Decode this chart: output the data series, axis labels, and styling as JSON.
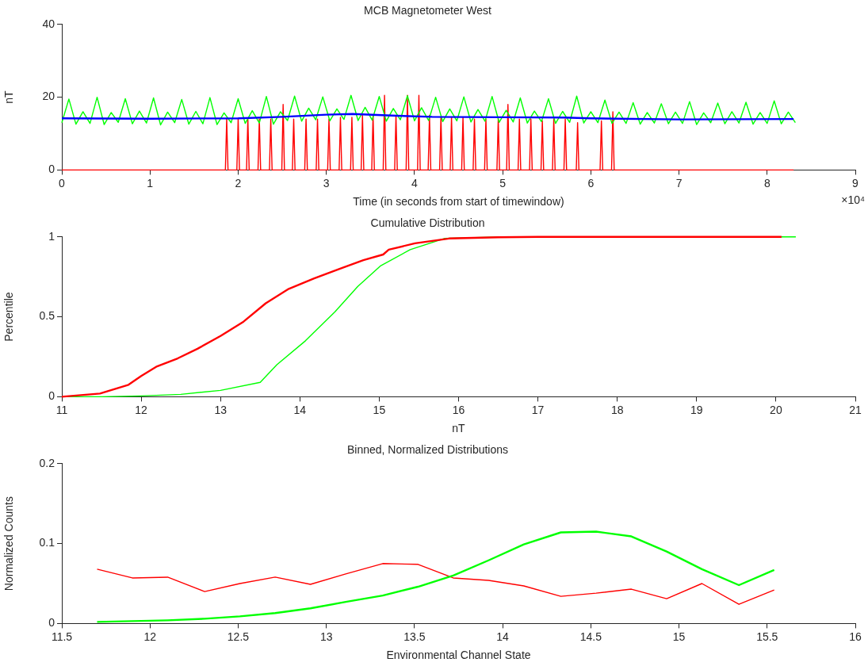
{
  "chart_data": [
    {
      "type": "line",
      "title": "MCB Magnetometer West",
      "xlabel": "Time (in seconds from start of timewindow)",
      "ylabel": "nT",
      "xlim": [
        0,
        9
      ],
      "xticks": [
        0,
        1,
        2,
        3,
        4,
        5,
        6,
        7,
        8,
        9
      ],
      "ylim": [
        0,
        40
      ],
      "yticks": [
        0,
        20,
        40
      ],
      "annotations": [
        "×10⁴"
      ],
      "series": [
        {
          "color": "#ff0000",
          "x": [
            0,
            1.855,
            1.87,
            1.885,
            1.985,
            2.0,
            2.015,
            2.095,
            2.11,
            2.125,
            2.225,
            2.24,
            2.255,
            2.355,
            2.37,
            2.385,
            2.495,
            2.51,
            2.525,
            2.615,
            2.63,
            2.645,
            2.755,
            2.77,
            2.785,
            2.885,
            2.9,
            2.915,
            3.015,
            3.03,
            3.045,
            3.145,
            3.16,
            3.175,
            3.275,
            3.29,
            3.305,
            3.395,
            3.41,
            3.425,
            3.515,
            3.53,
            3.545,
            3.645,
            3.66,
            3.675,
            3.775,
            3.79,
            3.805,
            3.905,
            3.92,
            3.935,
            4.035,
            4.05,
            4.065,
            4.155,
            4.17,
            4.185,
            4.285,
            4.3,
            4.315,
            4.405,
            4.42,
            4.435,
            4.535,
            4.55,
            4.565,
            4.665,
            4.68,
            4.695,
            4.795,
            4.81,
            4.825,
            4.935,
            4.95,
            4.965,
            5.045,
            5.06,
            5.075,
            5.175,
            5.19,
            5.205,
            5.305,
            5.32,
            5.335,
            5.435,
            5.45,
            5.465,
            5.565,
            5.58,
            5.595,
            5.695,
            5.71,
            5.725,
            5.835,
            5.85,
            5.865,
            6.105,
            6.12,
            6.135,
            6.235,
            6.25,
            6.265,
            8.3
          ],
          "values": [
            0,
            0,
            14,
            0,
            0,
            14,
            0,
            0,
            14,
            0,
            0,
            14,
            0,
            0,
            14,
            0,
            0,
            18,
            0,
            0,
            14,
            0,
            0,
            14,
            0,
            0,
            14,
            0,
            0,
            14,
            0,
            0,
            14.5,
            0,
            0,
            14.5,
            0,
            0,
            15,
            0,
            0,
            15,
            0,
            0,
            20.5,
            0,
            0,
            15,
            0,
            0,
            20.5,
            0,
            0,
            20.5,
            0,
            0,
            15,
            0,
            0,
            14.5,
            0,
            0,
            14.5,
            0,
            0,
            14.5,
            0,
            0,
            14,
            0,
            0,
            14,
            0,
            0,
            14,
            0,
            0,
            18,
            0,
            0,
            14,
            0,
            0,
            14,
            0,
            0,
            13.5,
            0,
            0,
            14,
            0,
            0,
            14,
            0,
            0,
            13,
            0,
            0,
            13.5,
            0,
            0,
            16,
            0,
            0
          ]
        },
        {
          "color": "#00ff00",
          "x": [
            0,
            0.08,
            0.16,
            0.24,
            0.32,
            0.4,
            0.48,
            0.56,
            0.64,
            0.72,
            0.8,
            0.88,
            0.96,
            1.04,
            1.12,
            1.2,
            1.28,
            1.36,
            1.44,
            1.52,
            1.6,
            1.68,
            1.76,
            1.84,
            1.92,
            2.0,
            2.08,
            2.16,
            2.24,
            2.32,
            2.4,
            2.48,
            2.56,
            2.64,
            2.72,
            2.8,
            2.88,
            2.96,
            3.04,
            3.12,
            3.2,
            3.28,
            3.36,
            3.44,
            3.52,
            3.6,
            3.68,
            3.76,
            3.84,
            3.92,
            4.0,
            4.08,
            4.16,
            4.24,
            4.32,
            4.4,
            4.48,
            4.56,
            4.64,
            4.72,
            4.8,
            4.88,
            4.96,
            5.04,
            5.12,
            5.2,
            5.28,
            5.36,
            5.44,
            5.52,
            5.6,
            5.68,
            5.76,
            5.84,
            5.92,
            6.0,
            6.08,
            6.16,
            6.24,
            6.32,
            6.4,
            6.48,
            6.56,
            6.64,
            6.72,
            6.8,
            6.88,
            6.96,
            7.04,
            7.12,
            7.2,
            7.28,
            7.36,
            7.44,
            7.52,
            7.6,
            7.68,
            7.76,
            7.84,
            7.92,
            8.0,
            8.08,
            8.16,
            8.24,
            8.32
          ],
          "values": [
            13.0,
            19.5,
            12.6,
            16.0,
            12.8,
            20.0,
            12.5,
            15.8,
            13.1,
            19.6,
            12.7,
            16.2,
            12.9,
            19.8,
            12.4,
            15.9,
            13.0,
            19.4,
            12.6,
            16.1,
            12.7,
            19.9,
            12.5,
            15.7,
            13.0,
            19.6,
            12.8,
            16.3,
            12.9,
            20.2,
            12.6,
            16.0,
            13.6,
            20.3,
            13.4,
            17.0,
            13.8,
            20.1,
            13.5,
            16.8,
            13.9,
            20.5,
            13.6,
            17.2,
            13.7,
            20.2,
            13.4,
            16.9,
            13.8,
            20.4,
            13.5,
            17.1,
            13.6,
            20.0,
            13.3,
            16.8,
            13.5,
            20.1,
            13.2,
            16.6,
            13.4,
            20.2,
            13.1,
            16.4,
            13.2,
            19.8,
            12.9,
            16.2,
            13.3,
            19.6,
            12.8,
            16.1,
            13.1,
            20.3,
            12.9,
            16.0,
            13.0,
            19.2,
            12.8,
            15.9,
            12.8,
            18.5,
            12.6,
            15.8,
            12.9,
            18.2,
            12.7,
            15.9,
            12.8,
            18.8,
            12.5,
            15.7,
            13.0,
            18.4,
            12.7,
            16.0,
            12.9,
            18.6,
            12.6,
            15.8,
            12.8,
            19.0,
            12.7,
            15.9,
            13.0
          ]
        },
        {
          "color": "#0000ff",
          "x": [
            0,
            1,
            2,
            2.5,
            3,
            3.3,
            3.8,
            4.2,
            5,
            5.7,
            6,
            7,
            8.3
          ],
          "values": [
            14.2,
            14.1,
            14.2,
            14.6,
            15.2,
            15.4,
            14.9,
            14.6,
            14.5,
            14.4,
            14.2,
            13.9,
            14.0
          ]
        }
      ]
    },
    {
      "type": "line",
      "title": "Cumulative Distribution",
      "xlabel": "nT",
      "ylabel": "Percentile",
      "xlim": [
        11,
        21
      ],
      "xticks": [
        11,
        12,
        13,
        14,
        15,
        16,
        17,
        18,
        19,
        20,
        21
      ],
      "ylim": [
        0,
        1
      ],
      "yticks": [
        0,
        0.5,
        1
      ],
      "series": [
        {
          "color": "#00ff00",
          "x": [
            11.0,
            11.5,
            12.0,
            12.5,
            13.0,
            13.5,
            13.71,
            14.07,
            14.44,
            14.73,
            15.02,
            15.39,
            15.82,
            16.5,
            20.25
          ],
          "values": [
            0,
            0,
            0.005,
            0.015,
            0.04,
            0.09,
            0.2,
            0.35,
            0.53,
            0.69,
            0.82,
            0.92,
            0.99,
            0.999,
            1
          ]
        },
        {
          "color": "#ff0000",
          "x": [
            11.0,
            11.48,
            11.84,
            12.0,
            12.2,
            12.46,
            12.71,
            13.0,
            13.29,
            13.57,
            13.86,
            14.18,
            14.5,
            14.8,
            15.05,
            15.12,
            15.45,
            15.88,
            16.5,
            17.0,
            20.07
          ],
          "values": [
            0,
            0.02,
            0.075,
            0.13,
            0.19,
            0.24,
            0.3,
            0.38,
            0.47,
            0.585,
            0.675,
            0.74,
            0.8,
            0.855,
            0.89,
            0.92,
            0.96,
            0.99,
            0.998,
            1,
            1
          ]
        }
      ]
    },
    {
      "type": "line",
      "title": "Binned, Normalized Distributions",
      "xlabel": "Environmental Channel State",
      "ylabel": "Normalized Counts",
      "xlim": [
        11.5,
        16
      ],
      "xticks": [
        11.5,
        12,
        12.5,
        13,
        13.5,
        14,
        14.5,
        15,
        15.5,
        16
      ],
      "ylim": [
        0,
        0.2
      ],
      "yticks": [
        0,
        0.1,
        0.2
      ],
      "series": [
        {
          "color": "#ff0000",
          "x": [
            11.7,
            11.9,
            12.1,
            12.31,
            12.51,
            12.71,
            12.91,
            13.11,
            13.32,
            13.52,
            13.72,
            13.92,
            14.12,
            14.33,
            14.53,
            14.73,
            14.93,
            15.13,
            15.34,
            15.54
          ],
          "values": [
            0.068,
            0.057,
            0.058,
            0.04,
            0.05,
            0.058,
            0.049,
            0.062,
            0.075,
            0.074,
            0.057,
            0.054,
            0.047,
            0.034,
            0.038,
            0.043,
            0.031,
            0.05,
            0.024,
            0.042
          ]
        },
        {
          "color": "#00ff00",
          "x": [
            11.7,
            11.9,
            12.1,
            12.31,
            12.51,
            12.71,
            12.91,
            13.11,
            13.32,
            13.52,
            13.72,
            13.92,
            14.12,
            14.33,
            14.53,
            14.73,
            14.93,
            15.13,
            15.34,
            15.54
          ],
          "values": [
            0.002,
            0.003,
            0.004,
            0.006,
            0.009,
            0.013,
            0.019,
            0.027,
            0.035,
            0.046,
            0.06,
            0.079,
            0.099,
            0.114,
            0.115,
            0.109,
            0.09,
            0.068,
            0.048,
            0.067
          ]
        }
      ]
    }
  ]
}
